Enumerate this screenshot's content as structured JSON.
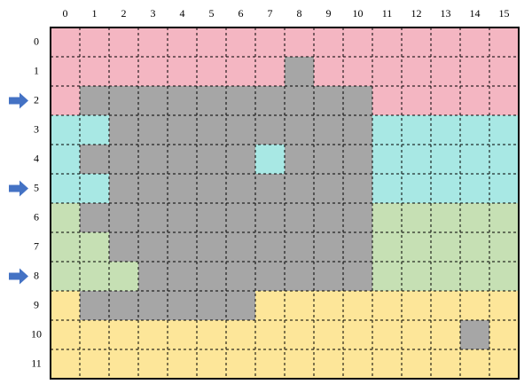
{
  "grid": {
    "column_labels": [
      "0",
      "1",
      "2",
      "3",
      "4",
      "5",
      "6",
      "7",
      "8",
      "9",
      "10",
      "11",
      "12",
      "13",
      "14",
      "15"
    ],
    "row_labels": [
      "0",
      "1",
      "2",
      "3",
      "4",
      "5",
      "6",
      "7",
      "8",
      "9",
      "10",
      "11"
    ],
    "arrow_rows": [
      2,
      5,
      8
    ],
    "arrow_color": "#4472c4",
    "cell_colors": [
      [
        "#f4b6c2",
        "#f4b6c2",
        "#f4b6c2",
        "#f4b6c2",
        "#f4b6c2",
        "#f4b6c2",
        "#f4b6c2",
        "#f4b6c2",
        "#f4b6c2",
        "#f4b6c2",
        "#f4b6c2",
        "#f4b6c2",
        "#f4b6c2",
        "#f4b6c2",
        "#f4b6c2",
        "#f4b6c2"
      ],
      [
        "#f4b6c2",
        "#f4b6c2",
        "#f4b6c2",
        "#f4b6c2",
        "#f4b6c2",
        "#f4b6c2",
        "#f4b6c2",
        "#f4b6c2",
        "#a6a6a6",
        "#f4b6c2",
        "#f4b6c2",
        "#f4b6c2",
        "#f4b6c2",
        "#f4b6c2",
        "#f4b6c2",
        "#f4b6c2"
      ],
      [
        "#f4b6c2",
        "#a6a6a6",
        "#a6a6a6",
        "#a6a6a6",
        "#a6a6a6",
        "#a6a6a6",
        "#a6a6a6",
        "#a6a6a6",
        "#a6a6a6",
        "#a6a6a6",
        "#a6a6a6",
        "#f4b6c2",
        "#f4b6c2",
        "#f4b6c2",
        "#f4b6c2",
        "#f4b6c2"
      ],
      [
        "#a8e8e4",
        "#a8e8e4",
        "#a6a6a6",
        "#a6a6a6",
        "#a6a6a6",
        "#a6a6a6",
        "#a6a6a6",
        "#a6a6a6",
        "#a6a6a6",
        "#a6a6a6",
        "#a6a6a6",
        "#a8e8e4",
        "#a8e8e4",
        "#a8e8e4",
        "#a8e8e4",
        "#a8e8e4"
      ],
      [
        "#a8e8e4",
        "#a6a6a6",
        "#a6a6a6",
        "#a6a6a6",
        "#a6a6a6",
        "#a6a6a6",
        "#a6a6a6",
        "#a8e8e4",
        "#a6a6a6",
        "#a6a6a6",
        "#a6a6a6",
        "#a8e8e4",
        "#a8e8e4",
        "#a8e8e4",
        "#a8e8e4",
        "#a8e8e4"
      ],
      [
        "#a8e8e4",
        "#a8e8e4",
        "#a6a6a6",
        "#a6a6a6",
        "#a6a6a6",
        "#a6a6a6",
        "#a6a6a6",
        "#a6a6a6",
        "#a6a6a6",
        "#a6a6a6",
        "#a6a6a6",
        "#a8e8e4",
        "#a8e8e4",
        "#a8e8e4",
        "#a8e8e4",
        "#a8e8e4"
      ],
      [
        "#c6e0b4",
        "#a6a6a6",
        "#a6a6a6",
        "#a6a6a6",
        "#a6a6a6",
        "#a6a6a6",
        "#a6a6a6",
        "#a6a6a6",
        "#a6a6a6",
        "#a6a6a6",
        "#a6a6a6",
        "#c6e0b4",
        "#c6e0b4",
        "#c6e0b4",
        "#c6e0b4",
        "#c6e0b4"
      ],
      [
        "#c6e0b4",
        "#c6e0b4",
        "#a6a6a6",
        "#a6a6a6",
        "#a6a6a6",
        "#a6a6a6",
        "#a6a6a6",
        "#a6a6a6",
        "#a6a6a6",
        "#a6a6a6",
        "#a6a6a6",
        "#c6e0b4",
        "#c6e0b4",
        "#c6e0b4",
        "#c6e0b4",
        "#c6e0b4"
      ],
      [
        "#c6e0b4",
        "#c6e0b4",
        "#c6e0b4",
        "#a6a6a6",
        "#a6a6a6",
        "#a6a6a6",
        "#a6a6a6",
        "#a6a6a6",
        "#a6a6a6",
        "#a6a6a6",
        "#a6a6a6",
        "#c6e0b4",
        "#c6e0b4",
        "#c6e0b4",
        "#c6e0b4",
        "#c6e0b4"
      ],
      [
        "#fde699",
        "#a6a6a6",
        "#a6a6a6",
        "#a6a6a6",
        "#a6a6a6",
        "#a6a6a6",
        "#a6a6a6",
        "#fde699",
        "#fde699",
        "#fde699",
        "#fde699",
        "#fde699",
        "#fde699",
        "#fde699",
        "#fde699",
        "#fde699"
      ],
      [
        "#fde699",
        "#fde699",
        "#fde699",
        "#fde699",
        "#fde699",
        "#fde699",
        "#fde699",
        "#fde699",
        "#fde699",
        "#fde699",
        "#fde699",
        "#fde699",
        "#fde699",
        "#fde699",
        "#a6a6a6",
        "#fde699"
      ],
      [
        "#fde699",
        "#fde699",
        "#fde699",
        "#fde699",
        "#fde699",
        "#fde699",
        "#fde699",
        "#fde699",
        "#fde699",
        "#fde699",
        "#fde699",
        "#fde699",
        "#fde699",
        "#fde699",
        "#fde699",
        "#fde699"
      ]
    ]
  }
}
